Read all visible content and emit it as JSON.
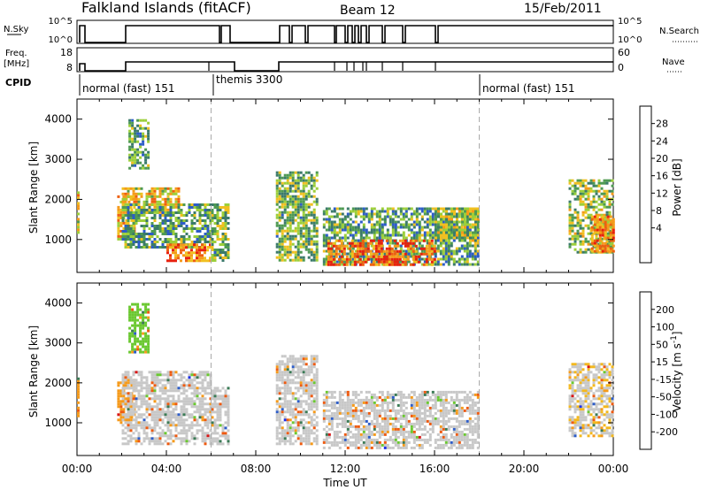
{
  "header": {
    "site": "Falkland Islands (fitACF)",
    "beam": "Beam 12",
    "date": "15/Feb/2011"
  },
  "strips": {
    "nsky_label": "N.Sky",
    "nsky_ticks": [
      "10^5",
      "10^0"
    ],
    "nsearch_label": "N.Search",
    "nsearch_ticks": [
      "10^5",
      "10^0"
    ],
    "freq_label_1": "Freq.",
    "freq_label_2": "[MHz]",
    "freq_ticks": [
      "18",
      "8"
    ],
    "nave_label": "Nave",
    "nave_ticks": [
      "60",
      "0"
    ]
  },
  "cpid": {
    "label": "CPID",
    "segments": [
      {
        "name": "normal (fast) 151",
        "start_hour": 0
      },
      {
        "name": "themis 3300",
        "start_hour": 6
      },
      {
        "name": "normal (fast) 151",
        "start_hour": 18
      }
    ]
  },
  "colors": {
    "power": [
      "#1a2ee6",
      "#2c5cc8",
      "#3b7a6a",
      "#4e9a52",
      "#9ccf3a",
      "#f0c020",
      "#f59a1a",
      "#ee6010",
      "#e8200e"
    ],
    "velocity": [
      "#d81414",
      "#ee5a10",
      "#f59a1a",
      "#f3b81e",
      "#c8c8c8",
      "#6ac830",
      "#3a7a55",
      "#2c5cc8",
      "#1a2ee6"
    ]
  },
  "chart_data": [
    {
      "type": "heatmap",
      "name": "power",
      "xlabel": "",
      "ylabel": "Slant Range [km]",
      "colorbar_label": "Power [dB]",
      "colorbar_ticks": [
        "28",
        "24",
        "20",
        "16",
        "12",
        "8",
        "4"
      ],
      "colorbar_range": [
        0,
        32
      ],
      "xlim": [
        0,
        24
      ],
      "ylim": [
        180,
        4500
      ],
      "yticks": [
        1000,
        2000,
        3000,
        4000
      ],
      "echo_regions": [
        {
          "t": [
            0.0,
            0.1
          ],
          "r": [
            1200,
            2200
          ],
          "p": 18
        },
        {
          "t": [
            1.8,
            2.6
          ],
          "r": [
            1000,
            2100
          ],
          "p": 22
        },
        {
          "t": [
            2.0,
            4.5
          ],
          "r": [
            1700,
            2300
          ],
          "p": 20
        },
        {
          "t": [
            2.3,
            3.2
          ],
          "r": [
            2800,
            4000
          ],
          "p": 12
        },
        {
          "t": [
            2.0,
            6.0
          ],
          "r": [
            800,
            1900
          ],
          "p": 12
        },
        {
          "t": [
            4.0,
            6.0
          ],
          "r": [
            500,
            900
          ],
          "p": 25
        },
        {
          "t": [
            6.0,
            6.8
          ],
          "r": [
            500,
            1900
          ],
          "p": 14
        },
        {
          "t": [
            8.9,
            10.7
          ],
          "r": [
            500,
            2700
          ],
          "p": 14
        },
        {
          "t": [
            11.0,
            18.0
          ],
          "r": [
            350,
            1800
          ],
          "p": 12
        },
        {
          "t": [
            11.2,
            16.0
          ],
          "r": [
            400,
            1000
          ],
          "p": 26
        },
        {
          "t": [
            16.0,
            18.0
          ],
          "r": [
            1000,
            1800
          ],
          "p": 16
        },
        {
          "t": [
            22.0,
            24.0
          ],
          "r": [
            700,
            2500
          ],
          "p": 16
        },
        {
          "t": [
            23.0,
            24.0
          ],
          "r": [
            700,
            1600
          ],
          "p": 24
        }
      ]
    },
    {
      "type": "heatmap",
      "name": "velocity",
      "xlabel": "Time UT",
      "ylabel": "Slant Range [km]",
      "colorbar_label": "Velocity [m s^-1]",
      "colorbar_ticks": [
        "200",
        "100",
        "50",
        "15",
        "-15",
        "-50",
        "-100",
        "-200"
      ],
      "colorbar_range": [
        -250,
        250
      ],
      "xlim": [
        0,
        24
      ],
      "ylim": [
        180,
        4500
      ],
      "yticks": [
        1000,
        2000,
        3000,
        4000
      ],
      "xticks": [
        "00:00",
        "04:00",
        "08:00",
        "12:00",
        "16:00",
        "20:00",
        "00:00"
      ],
      "echo_regions": [
        {
          "t": [
            0.0,
            0.1
          ],
          "r": [
            1200,
            2200
          ],
          "v": -70
        },
        {
          "t": [
            1.8,
            2.6
          ],
          "r": [
            1000,
            2100
          ],
          "v": -60
        },
        {
          "t": [
            2.0,
            6.0
          ],
          "r": [
            500,
            2300
          ],
          "v": 0
        },
        {
          "t": [
            2.3,
            3.2
          ],
          "r": [
            2800,
            4000
          ],
          "v": 30
        },
        {
          "t": [
            6.0,
            6.8
          ],
          "r": [
            500,
            1900
          ],
          "v": 0
        },
        {
          "t": [
            8.9,
            10.7
          ],
          "r": [
            500,
            2700
          ],
          "v": 0
        },
        {
          "t": [
            11.0,
            18.0
          ],
          "r": [
            350,
            1800
          ],
          "v": 0
        },
        {
          "t": [
            22.0,
            24.0
          ],
          "r": [
            700,
            2500
          ],
          "v": -10
        }
      ]
    }
  ]
}
